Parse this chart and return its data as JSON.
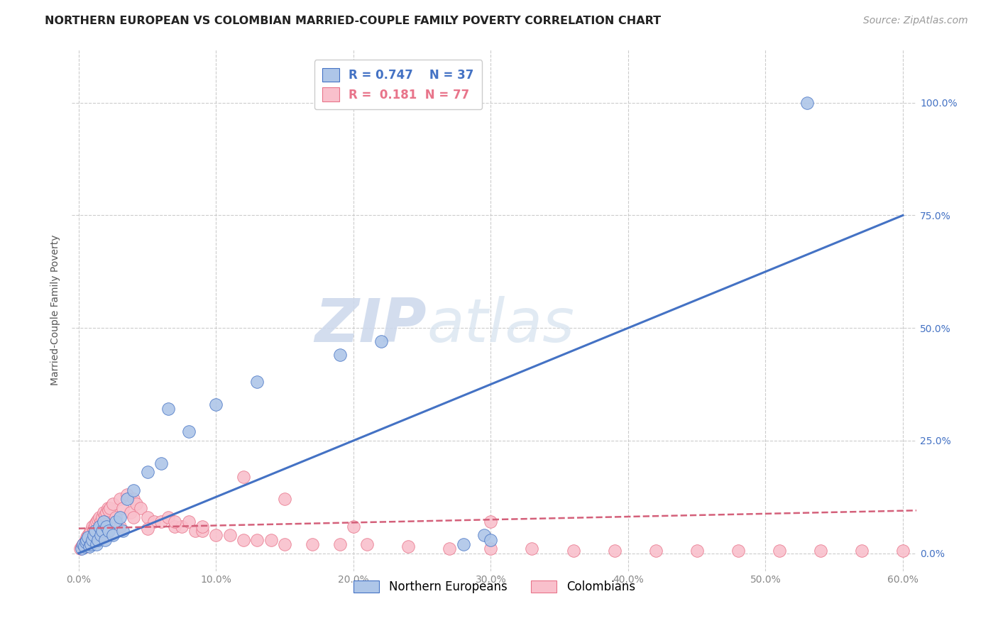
{
  "title": "NORTHERN EUROPEAN VS COLOMBIAN MARRIED-COUPLE FAMILY POVERTY CORRELATION CHART",
  "source": "Source: ZipAtlas.com",
  "ylabel": "Married-Couple Family Poverty",
  "xlim": [
    -0.005,
    0.61
  ],
  "ylim": [
    -0.04,
    1.12
  ],
  "xticks": [
    0.0,
    0.1,
    0.2,
    0.3,
    0.4,
    0.5,
    0.6
  ],
  "xticklabels": [
    "0.0%",
    "10.0%",
    "20.0%",
    "30.0%",
    "40.0%",
    "50.0%",
    "60.0%"
  ],
  "yticks": [
    0.0,
    0.25,
    0.5,
    0.75,
    1.0
  ],
  "yticklabels": [
    "0.0%",
    "25.0%",
    "50.0%",
    "75.0%",
    "100.0%"
  ],
  "blue_fill_color": "#aec6e8",
  "blue_edge_color": "#4472c4",
  "pink_fill_color": "#f9c0cc",
  "pink_edge_color": "#e8748a",
  "blue_line_color": "#4472c4",
  "pink_line_color": "#d4607a",
  "legend_label1": "Northern Europeans",
  "legend_label2": "Colombians",
  "watermark_zip": "ZIP",
  "watermark_atlas": "atlas",
  "background_color": "#ffffff",
  "grid_color": "#cccccc",
  "tick_color_right": "#4472c4",
  "tick_color_x": "#888888",
  "blue_scatter_x": [
    0.002,
    0.003,
    0.004,
    0.005,
    0.006,
    0.007,
    0.008,
    0.009,
    0.01,
    0.011,
    0.012,
    0.013,
    0.014,
    0.015,
    0.016,
    0.017,
    0.018,
    0.019,
    0.02,
    0.022,
    0.025,
    0.027,
    0.03,
    0.032,
    0.035,
    0.04,
    0.05,
    0.06,
    0.065,
    0.08,
    0.1,
    0.13,
    0.19,
    0.22,
    0.28,
    0.295,
    0.3,
    0.53
  ],
  "blue_scatter_y": [
    0.01,
    0.02,
    0.015,
    0.025,
    0.03,
    0.035,
    0.015,
    0.02,
    0.03,
    0.04,
    0.05,
    0.02,
    0.03,
    0.06,
    0.04,
    0.05,
    0.07,
    0.03,
    0.06,
    0.05,
    0.04,
    0.07,
    0.08,
    0.05,
    0.12,
    0.14,
    0.18,
    0.2,
    0.32,
    0.27,
    0.33,
    0.38,
    0.44,
    0.47,
    0.02,
    0.04,
    0.03,
    1.0
  ],
  "pink_scatter_x": [
    0.001,
    0.002,
    0.003,
    0.004,
    0.005,
    0.006,
    0.007,
    0.008,
    0.009,
    0.01,
    0.011,
    0.012,
    0.013,
    0.014,
    0.015,
    0.016,
    0.017,
    0.018,
    0.019,
    0.02,
    0.021,
    0.022,
    0.023,
    0.025,
    0.027,
    0.03,
    0.032,
    0.035,
    0.038,
    0.04,
    0.042,
    0.045,
    0.05,
    0.055,
    0.06,
    0.065,
    0.07,
    0.075,
    0.08,
    0.085,
    0.09,
    0.1,
    0.11,
    0.12,
    0.13,
    0.14,
    0.15,
    0.17,
    0.19,
    0.21,
    0.24,
    0.27,
    0.3,
    0.33,
    0.36,
    0.39,
    0.42,
    0.45,
    0.48,
    0.51,
    0.54,
    0.57,
    0.6,
    0.005,
    0.01,
    0.02,
    0.03,
    0.04,
    0.05,
    0.07,
    0.09,
    0.12,
    0.15,
    0.2,
    0.3
  ],
  "pink_scatter_y": [
    0.01,
    0.015,
    0.02,
    0.025,
    0.03,
    0.035,
    0.04,
    0.045,
    0.05,
    0.06,
    0.055,
    0.065,
    0.07,
    0.075,
    0.08,
    0.07,
    0.08,
    0.09,
    0.085,
    0.09,
    0.1,
    0.095,
    0.1,
    0.11,
    0.08,
    0.12,
    0.1,
    0.13,
    0.09,
    0.12,
    0.11,
    0.1,
    0.08,
    0.07,
    0.07,
    0.08,
    0.06,
    0.06,
    0.07,
    0.05,
    0.05,
    0.04,
    0.04,
    0.03,
    0.03,
    0.03,
    0.02,
    0.02,
    0.02,
    0.02,
    0.015,
    0.01,
    0.01,
    0.01,
    0.005,
    0.005,
    0.005,
    0.005,
    0.005,
    0.005,
    0.005,
    0.005,
    0.005,
    0.015,
    0.025,
    0.04,
    0.06,
    0.08,
    0.055,
    0.07,
    0.06,
    0.17,
    0.12,
    0.06,
    0.07
  ],
  "blue_line_x": [
    0.0,
    0.6
  ],
  "blue_line_y": [
    0.0,
    0.75
  ],
  "pink_line_x": [
    0.0,
    0.61
  ],
  "pink_line_y": [
    0.055,
    0.095
  ],
  "title_fontsize": 11.5,
  "axis_label_fontsize": 10,
  "tick_fontsize": 10,
  "legend_fontsize": 11,
  "source_fontsize": 10
}
